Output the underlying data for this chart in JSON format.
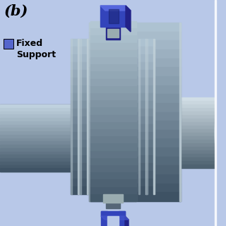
{
  "bg_color": "#b8c8e8",
  "title_label": "(b)",
  "legend_label": "Fixed\nSupport",
  "legend_box_color": "#5566cc",
  "body_color_main": "#6a7f90",
  "body_color_dark": "#3d5060",
  "body_color_mid": "#556070",
  "body_color_light": "#a0b5c0",
  "fin_color": "#5a7080",
  "fin_light": "#c0d0d8",
  "blue_bracket_color": "#3344bb",
  "blue_bracket_dark": "#222288",
  "blue_bracket_light": "#5566dd",
  "grey_block": "#9aacb0",
  "right_cyl_color": "#6a7f90",
  "right_cyl_end": "#c5d5de"
}
